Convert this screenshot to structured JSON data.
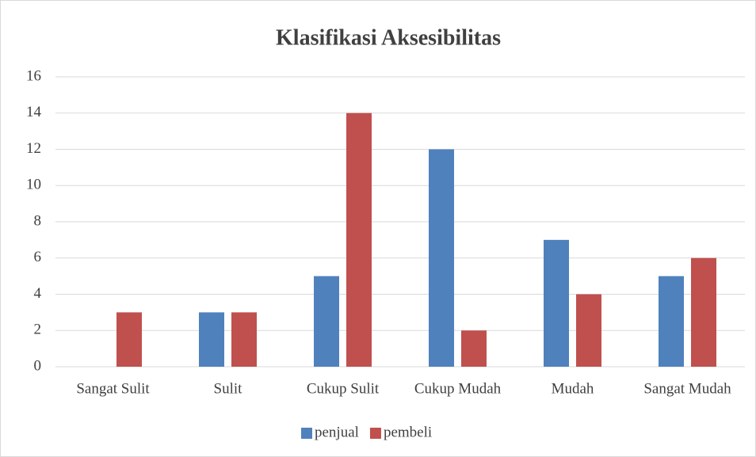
{
  "chart_data": {
    "type": "bar",
    "title": "Klasifikasi Aksesibilitas",
    "categories": [
      "Sangat Sulit",
      "Sulit",
      "Cukup Sulit",
      "Cukup Mudah",
      "Mudah",
      "Sangat Mudah"
    ],
    "series": [
      {
        "name": "penjual",
        "color": "#4f81bd",
        "values": [
          0,
          3,
          5,
          12,
          7,
          5
        ]
      },
      {
        "name": "pembeli",
        "color": "#c0504d",
        "values": [
          3,
          3,
          14,
          2,
          4,
          6
        ]
      }
    ],
    "ylim": [
      0,
      16
    ],
    "yticks": [
      0,
      2,
      4,
      6,
      8,
      10,
      12,
      14,
      16
    ],
    "grid": true,
    "legend": "bottom"
  }
}
